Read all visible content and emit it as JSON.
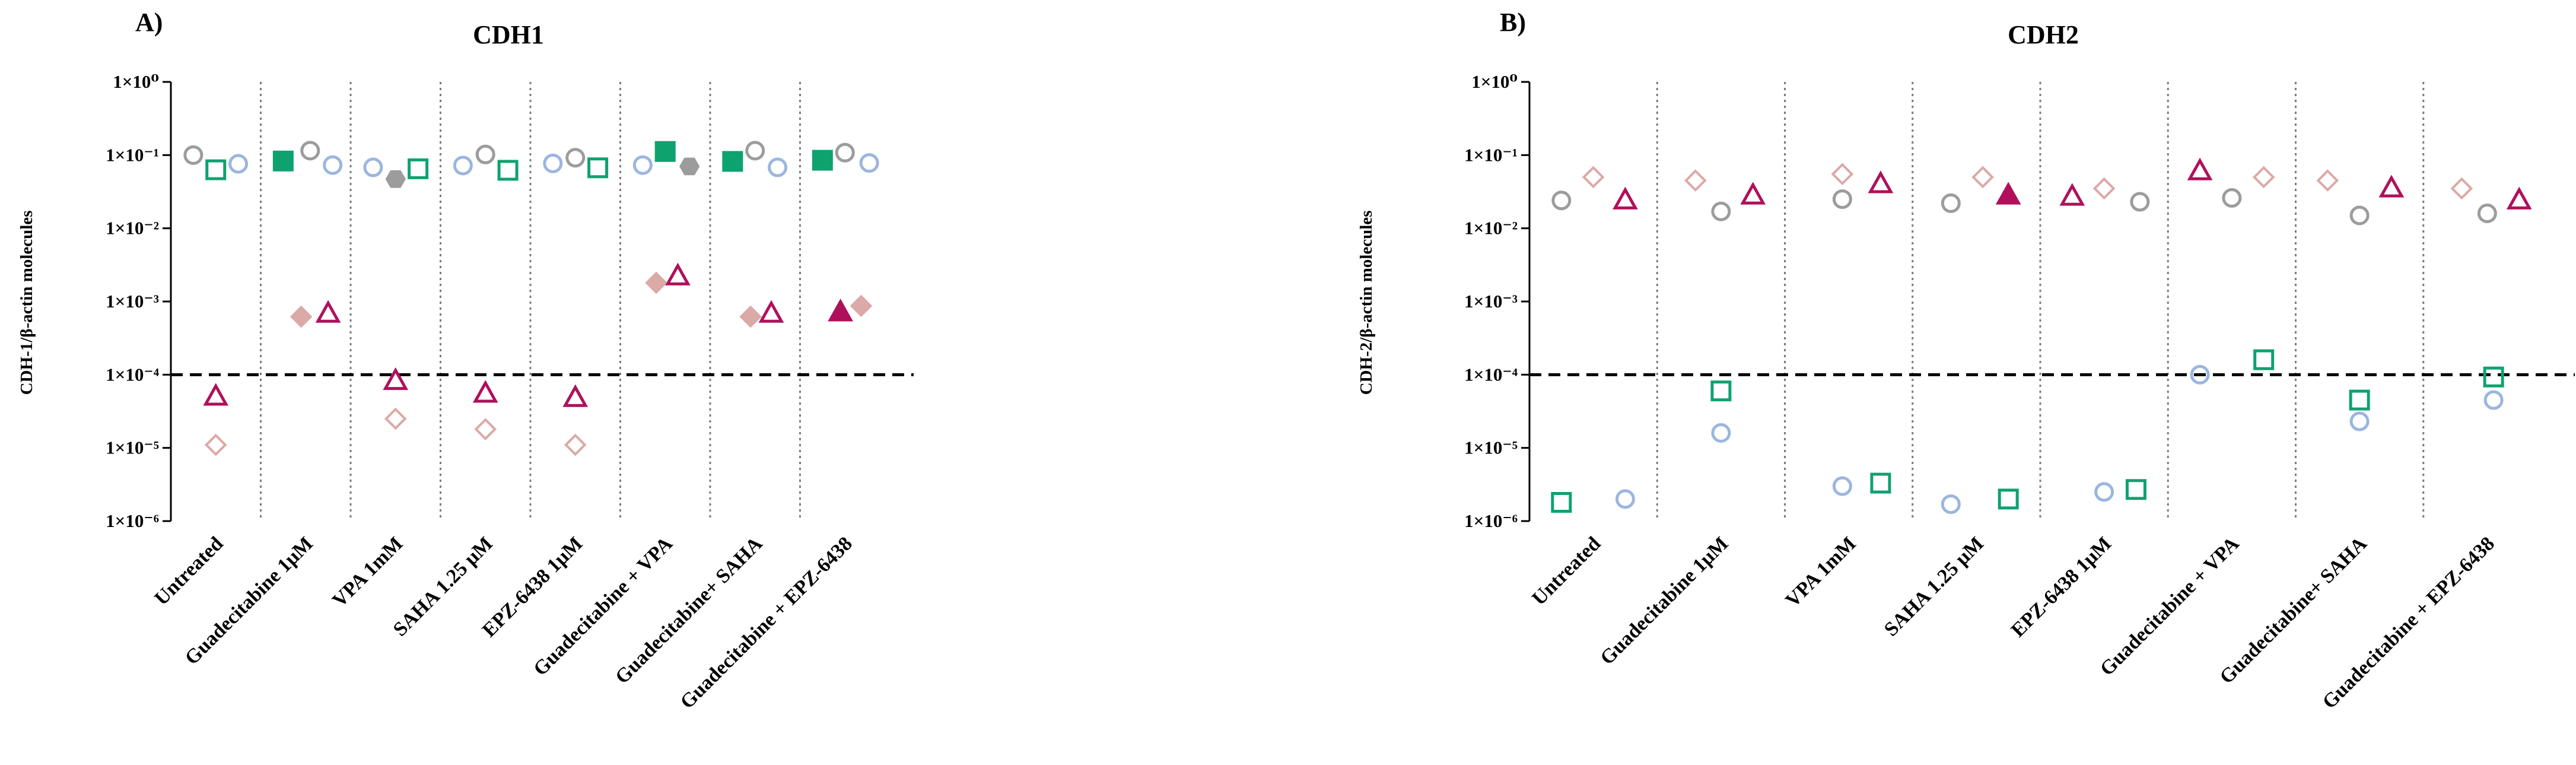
{
  "colors": {
    "grey": "#9c9c9c",
    "green": "#0ea26e",
    "blue": "#9bb6de",
    "pink": "#dba9a6",
    "magenta": "#b0105b",
    "threshold": "#000000",
    "divider": "#7d7d7d"
  },
  "chart_data": [
    {
      "type": "scatter",
      "panel": "A)",
      "title": "CDH1",
      "ylabel": "CDH-1/β-actin molecules",
      "yscale": "log",
      "ylim": [
        1e-06,
        1
      ],
      "yticks": [
        {
          "value": 1,
          "label": "1×10⁰"
        },
        {
          "value": 0.1,
          "label": "1×10⁻¹"
        },
        {
          "value": 0.01,
          "label": "1×10⁻²"
        },
        {
          "value": 0.001,
          "label": "1×10⁻³"
        },
        {
          "value": 0.0001,
          "label": "1×10⁻⁴"
        },
        {
          "value": 1e-05,
          "label": "1×10⁻⁵"
        },
        {
          "value": 1e-06,
          "label": "1×10⁻⁶"
        }
      ],
      "threshold": 0.0001,
      "categories": [
        "Untreated",
        "Guadecitabine 1μM",
        "VPA 1mM",
        "SAHA 1.25 μM",
        "EPZ-6438 1μM",
        "Guadecitabine + VPA",
        "Guadecitabine+ SAHA",
        "Guadecitabine + EPZ-6438"
      ],
      "series": [
        {
          "name": "grey",
          "marker": "circle",
          "color": "grey",
          "points": [
            {
              "cat": 0,
              "offset": -0.25,
              "y": 0.1,
              "filled": false
            },
            {
              "cat": 1,
              "offset": 0.05,
              "y": 0.115,
              "filled": false
            },
            {
              "cat": 2,
              "offset": 0.0,
              "y": 0.047,
              "filled": true,
              "hex": true
            },
            {
              "cat": 3,
              "offset": 0.0,
              "y": 0.102,
              "filled": false
            },
            {
              "cat": 4,
              "offset": 0.0,
              "y": 0.092,
              "filled": false
            },
            {
              "cat": 5,
              "offset": 0.27,
              "y": 0.07,
              "filled": true,
              "hex": true
            },
            {
              "cat": 6,
              "offset": 0.0,
              "y": 0.115,
              "filled": false
            },
            {
              "cat": 7,
              "offset": 0.0,
              "y": 0.108,
              "filled": false
            }
          ]
        },
        {
          "name": "green",
          "marker": "square",
          "color": "green",
          "points": [
            {
              "cat": 0,
              "offset": 0.0,
              "y": 0.063,
              "filled": false
            },
            {
              "cat": 1,
              "offset": -0.25,
              "y": 0.083,
              "filled": true
            },
            {
              "cat": 2,
              "offset": 0.25,
              "y": 0.065,
              "filled": false
            },
            {
              "cat": 3,
              "offset": 0.25,
              "y": 0.062,
              "filled": false
            },
            {
              "cat": 4,
              "offset": 0.25,
              "y": 0.067,
              "filled": false
            },
            {
              "cat": 5,
              "offset": 0.0,
              "y": 0.112,
              "filled": true
            },
            {
              "cat": 6,
              "offset": -0.25,
              "y": 0.082,
              "filled": true
            },
            {
              "cat": 7,
              "offset": -0.25,
              "y": 0.085,
              "filled": true
            }
          ]
        },
        {
          "name": "blue",
          "marker": "circle",
          "color": "blue",
          "points": [
            {
              "cat": 0,
              "offset": 0.25,
              "y": 0.076,
              "filled": false
            },
            {
              "cat": 1,
              "offset": 0.3,
              "y": 0.073,
              "filled": false
            },
            {
              "cat": 2,
              "offset": -0.25,
              "y": 0.068,
              "filled": false
            },
            {
              "cat": 3,
              "offset": -0.25,
              "y": 0.072,
              "filled": false
            },
            {
              "cat": 4,
              "offset": -0.25,
              "y": 0.077,
              "filled": false
            },
            {
              "cat": 5,
              "offset": -0.25,
              "y": 0.073,
              "filled": false
            },
            {
              "cat": 6,
              "offset": 0.25,
              "y": 0.068,
              "filled": false
            },
            {
              "cat": 7,
              "offset": 0.27,
              "y": 0.078,
              "filled": false
            }
          ]
        },
        {
          "name": "pink",
          "marker": "diamond",
          "color": "pink",
          "points": [
            {
              "cat": 0,
              "offset": 0.0,
              "y": 1.1e-05,
              "filled": false
            },
            {
              "cat": 1,
              "offset": -0.05,
              "y": 0.00062,
              "filled": true
            },
            {
              "cat": 2,
              "offset": 0.0,
              "y": 2.5e-05,
              "filled": false
            },
            {
              "cat": 3,
              "offset": 0.0,
              "y": 1.8e-05,
              "filled": false
            },
            {
              "cat": 4,
              "offset": 0.0,
              "y": 1.1e-05,
              "filled": false
            },
            {
              "cat": 5,
              "offset": -0.1,
              "y": 0.0018,
              "filled": true
            },
            {
              "cat": 6,
              "offset": -0.05,
              "y": 0.00062,
              "filled": true
            },
            {
              "cat": 7,
              "offset": 0.18,
              "y": 0.00087,
              "filled": true
            }
          ]
        },
        {
          "name": "magenta",
          "marker": "triangle",
          "color": "magenta",
          "points": [
            {
              "cat": 0,
              "offset": 0.0,
              "y": 5e-05,
              "filled": false
            },
            {
              "cat": 1,
              "offset": 0.25,
              "y": 0.00068,
              "filled": false
            },
            {
              "cat": 2,
              "offset": 0.0,
              "y": 8.2e-05,
              "filled": false
            },
            {
              "cat": 3,
              "offset": 0.0,
              "y": 5.5e-05,
              "filled": false
            },
            {
              "cat": 4,
              "offset": 0.0,
              "y": 4.8e-05,
              "filled": false
            },
            {
              "cat": 5,
              "offset": 0.14,
              "y": 0.0022,
              "filled": false
            },
            {
              "cat": 6,
              "offset": 0.18,
              "y": 0.00068,
              "filled": false
            },
            {
              "cat": 7,
              "offset": -0.05,
              "y": 0.00071,
              "filled": true
            }
          ]
        }
      ]
    },
    {
      "type": "scatter",
      "panel": "B)",
      "title": "CDH2",
      "ylabel": "CDH-2/β-actin molecules",
      "yscale": "log",
      "ylim": [
        1e-06,
        1
      ],
      "yticks": [
        {
          "value": 1,
          "label": "1×10⁰"
        },
        {
          "value": 0.1,
          "label": "1×10⁻¹"
        },
        {
          "value": 0.01,
          "label": "1×10⁻²"
        },
        {
          "value": 0.001,
          "label": "1×10⁻³"
        },
        {
          "value": 0.0001,
          "label": "1×10⁻⁴"
        },
        {
          "value": 1e-05,
          "label": "1×10⁻⁵"
        },
        {
          "value": 1e-06,
          "label": "1×10⁻⁶"
        }
      ],
      "threshold": 0.0001,
      "categories": [
        "Untreated",
        "Guadecitabine 1μM",
        "VPA 1mM",
        "SAHA 1.25 μM",
        "EPZ-6438 1μM",
        "Guadecitabine + VPA",
        "Guadecitabine+ SAHA",
        "Guadecitabine + EPZ-6438"
      ],
      "series": [
        {
          "name": "grey",
          "marker": "circle",
          "color": "grey",
          "points": [
            {
              "cat": 0,
              "offset": -0.25,
              "y": 0.024,
              "filled": false
            },
            {
              "cat": 1,
              "offset": 0.0,
              "y": 0.017,
              "filled": false
            },
            {
              "cat": 2,
              "offset": -0.05,
              "y": 0.025,
              "filled": false
            },
            {
              "cat": 3,
              "offset": -0.2,
              "y": 0.022,
              "filled": false
            },
            {
              "cat": 4,
              "offset": 0.28,
              "y": 0.023,
              "filled": false
            },
            {
              "cat": 5,
              "offset": 0.0,
              "y": 0.026,
              "filled": false
            },
            {
              "cat": 6,
              "offset": 0.0,
              "y": 0.015,
              "filled": false
            },
            {
              "cat": 7,
              "offset": 0.0,
              "y": 0.016,
              "filled": false
            }
          ]
        },
        {
          "name": "pink",
          "marker": "diamond",
          "color": "pink",
          "points": [
            {
              "cat": 0,
              "offset": 0.0,
              "y": 0.05,
              "filled": false
            },
            {
              "cat": 1,
              "offset": -0.2,
              "y": 0.045,
              "filled": false
            },
            {
              "cat": 2,
              "offset": -0.05,
              "y": 0.055,
              "filled": false
            },
            {
              "cat": 3,
              "offset": 0.05,
              "y": 0.05,
              "filled": false
            },
            {
              "cat": 4,
              "offset": 0.0,
              "y": 0.035,
              "filled": false
            },
            {
              "cat": 5,
              "offset": 0.25,
              "y": 0.05,
              "filled": false
            },
            {
              "cat": 6,
              "offset": -0.25,
              "y": 0.045,
              "filled": false
            },
            {
              "cat": 7,
              "offset": -0.2,
              "y": 0.035,
              "filled": false
            }
          ]
        },
        {
          "name": "magenta",
          "marker": "triangle",
          "color": "magenta",
          "points": [
            {
              "cat": 0,
              "offset": 0.25,
              "y": 0.024,
              "filled": false
            },
            {
              "cat": 1,
              "offset": 0.25,
              "y": 0.028,
              "filled": false
            },
            {
              "cat": 2,
              "offset": 0.25,
              "y": 0.04,
              "filled": false
            },
            {
              "cat": 3,
              "offset": 0.25,
              "y": 0.028,
              "filled": true
            },
            {
              "cat": 4,
              "offset": -0.25,
              "y": 0.027,
              "filled": false
            },
            {
              "cat": 5,
              "offset": -0.25,
              "y": 0.06,
              "filled": false
            },
            {
              "cat": 6,
              "offset": 0.25,
              "y": 0.035,
              "filled": false
            },
            {
              "cat": 7,
              "offset": 0.25,
              "y": 0.024,
              "filled": false
            }
          ]
        },
        {
          "name": "green",
          "marker": "square",
          "color": "green",
          "points": [
            {
              "cat": 0,
              "offset": -0.25,
              "y": 1.8e-06,
              "filled": false
            },
            {
              "cat": 1,
              "offset": 0.0,
              "y": 6e-05,
              "filled": false
            },
            {
              "cat": 2,
              "offset": 0.25,
              "y": 3.3e-06,
              "filled": false
            },
            {
              "cat": 3,
              "offset": 0.25,
              "y": 2e-06,
              "filled": false
            },
            {
              "cat": 4,
              "offset": 0.25,
              "y": 2.7e-06,
              "filled": false
            },
            {
              "cat": 5,
              "offset": 0.25,
              "y": 0.00016,
              "filled": false
            },
            {
              "cat": 6,
              "offset": 0.0,
              "y": 4.5e-05,
              "filled": false
            },
            {
              "cat": 7,
              "offset": 0.05,
              "y": 9.3e-05,
              "filled": false
            }
          ]
        },
        {
          "name": "blue",
          "marker": "circle",
          "color": "blue",
          "points": [
            {
              "cat": 0,
              "offset": 0.25,
              "y": 2e-06,
              "filled": false
            },
            {
              "cat": 1,
              "offset": 0.0,
              "y": 1.6e-05,
              "filled": false
            },
            {
              "cat": 2,
              "offset": -0.05,
              "y": 3e-06,
              "filled": false
            },
            {
              "cat": 3,
              "offset": -0.2,
              "y": 1.7e-06,
              "filled": false
            },
            {
              "cat": 4,
              "offset": 0.0,
              "y": 2.5e-06,
              "filled": false
            },
            {
              "cat": 5,
              "offset": -0.25,
              "y": 0.0001,
              "filled": false
            },
            {
              "cat": 6,
              "offset": 0.0,
              "y": 2.3e-05,
              "filled": false
            },
            {
              "cat": 7,
              "offset": 0.05,
              "y": 4.5e-05,
              "filled": false
            }
          ]
        }
      ]
    }
  ]
}
